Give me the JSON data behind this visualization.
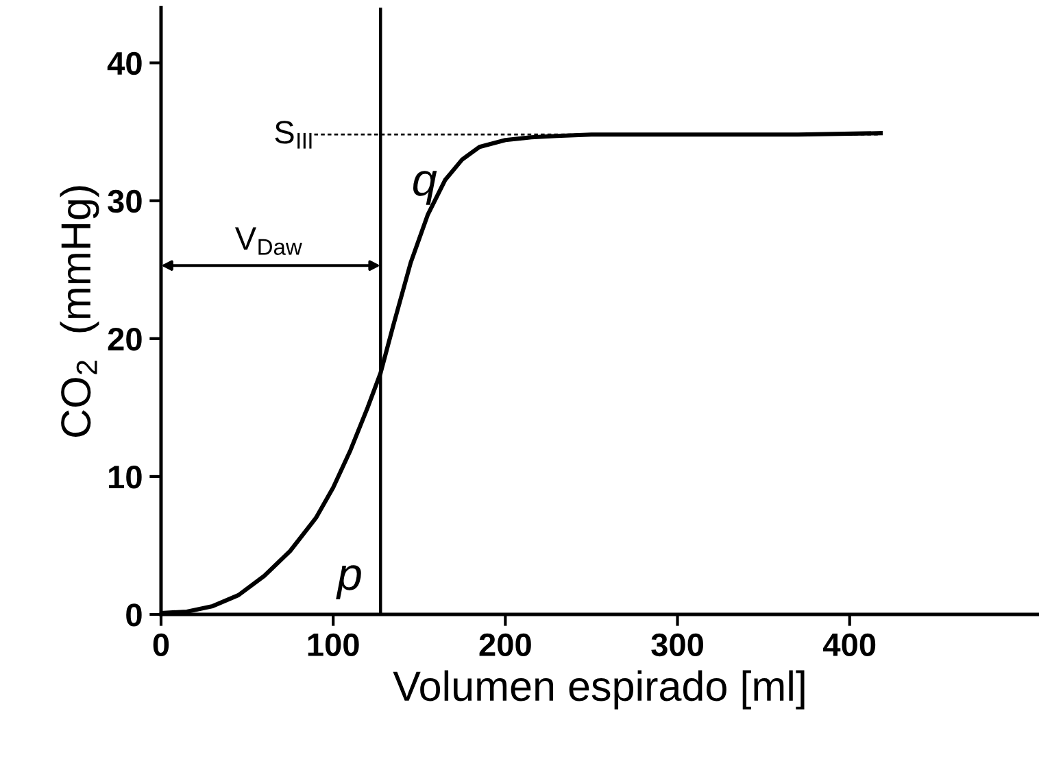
{
  "chart_data": {
    "type": "line",
    "xlabel": "Volumen espirado [ml]",
    "ylabel": "CO$_{2}$  (mmHg)",
    "xlim": [
      0,
      510
    ],
    "ylim": [
      0,
      44
    ],
    "xticks": [
      0,
      100,
      200,
      300,
      400
    ],
    "yticks": [
      0,
      10,
      20,
      30,
      40
    ],
    "grid": false,
    "legend": false,
    "marker": "none",
    "series": [
      {
        "color": "#000000",
        "line_style": "solid",
        "x": [
          0,
          15,
          30,
          45,
          60,
          75,
          90,
          100,
          110,
          120,
          127.5,
          135,
          145,
          155,
          165,
          175,
          185,
          200,
          215,
          230,
          250,
          280,
          320,
          370,
          418
        ],
        "values": [
          0.1,
          0.2,
          0.6,
          1.4,
          2.8,
          4.6,
          7.0,
          9.2,
          11.9,
          15.0,
          17.5,
          21.0,
          25.5,
          29.0,
          31.5,
          33.0,
          33.9,
          34.4,
          34.6,
          34.7,
          34.8,
          34.8,
          34.8,
          34.8,
          34.9
        ]
      },
      {
        "color": "#000000",
        "line_style": "dotted",
        "x": [
          89,
          418
        ],
        "values": [
          34.8,
          34.8
        ]
      }
    ],
    "ref_lines": [
      {
        "axis": "x",
        "value": 127.5,
        "color": "#000000"
      }
    ],
    "annotations": [
      "V$_{Daw}$",
      "S$_{III}$",
      "q",
      "p"
    ]
  }
}
